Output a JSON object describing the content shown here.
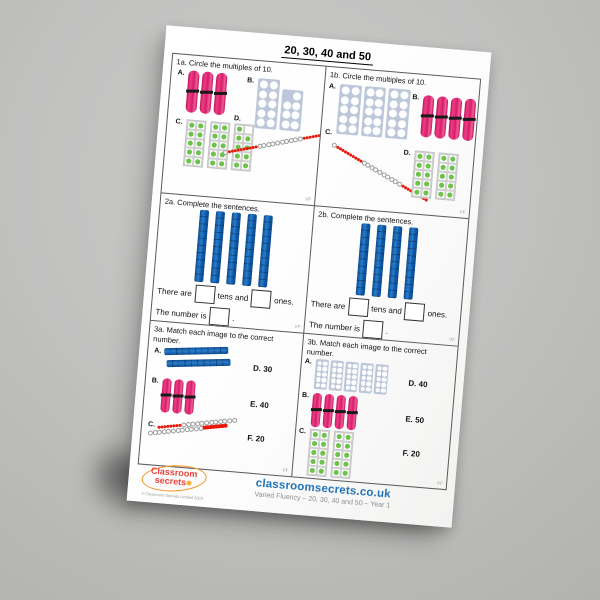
{
  "page": {
    "title": "20, 30, 40 and 50",
    "watermark": "VF",
    "footer": {
      "logo_line1": "Classroom",
      "logo_line2": "secrets",
      "logo_star": "✱",
      "copyright": "© Classroom Secrets Limited 2023",
      "website": "classroomsecrets.co.uk",
      "subtitle": "Varied Fluency – 20, 30, 40 and 50 – Year 1"
    }
  },
  "colors": {
    "bundle_pink": "#e0246d",
    "rod_blue": "#1266ae",
    "numicon_grey": "#bcc8da",
    "dot_green": "#6cc24a",
    "bead_red": "#e8190b",
    "website_blue": "#2273b8",
    "logo_orange": "#f7941d",
    "logo_red": "#e8423c"
  },
  "sections": {
    "s1a": {
      "label": "1a. Circle the multiples of 10.",
      "items": [
        {
          "letter": "A.",
          "type": "bundles",
          "count": 3,
          "value": 30
        },
        {
          "letter": "B.",
          "type": "numicon_pair",
          "shapes": [
            10,
            7
          ],
          "value": 17
        },
        {
          "letter": "C.",
          "type": "tenframes",
          "frames": [
            10,
            10,
            9
          ],
          "value": 29
        },
        {
          "letter": "D.",
          "type": "beads",
          "pattern": "w1,r10,w10,r10",
          "angle": -15,
          "value": 30
        }
      ]
    },
    "s1b": {
      "label": "1b. Circle the multiples of 10.",
      "items": [
        {
          "letter": "A.",
          "type": "numicons",
          "count": 3,
          "value": 30
        },
        {
          "letter": "B.",
          "type": "bundles",
          "count": 4,
          "value": 40
        },
        {
          "letter": "C.",
          "type": "beads",
          "pattern": "w1,r10,w10,r10",
          "angle": 26,
          "value": 30
        },
        {
          "letter": "D.",
          "type": "tenframes",
          "frames": [
            10,
            10
          ],
          "value": 20
        }
      ]
    },
    "s2a": {
      "label": "2a. Complete the sentences.",
      "rods": {
        "type": "rods",
        "count": 5,
        "value": 50
      },
      "sentence": {
        "p1": "There are",
        "p2": "tens and",
        "p3": "ones.",
        "p4": "The number is",
        "p5": "."
      }
    },
    "s2b": {
      "label": "2b. Complete the sentences.",
      "rods": {
        "type": "rods",
        "count": 4,
        "value": 40
      },
      "sentence": {
        "p1": "There are",
        "p2": "tens and",
        "p3": "ones.",
        "p4": "The number is",
        "p5": "."
      }
    },
    "s3a": {
      "label": "3a. Match each image to the correct number.",
      "items": [
        {
          "letter": "A.",
          "type": "hrods",
          "count": 2,
          "value": 20
        },
        {
          "letter": "B.",
          "type": "bundles_sm",
          "count": 3,
          "value": 30
        },
        {
          "letter": "C.",
          "type": "beadpair",
          "top": "r8,w12",
          "bottom": "w12,r8",
          "angle": -10,
          "value": 40
        }
      ],
      "options": [
        "D. 30",
        "E. 40",
        "F. 20"
      ]
    },
    "s3b": {
      "label": "3b. Match each image to the correct number.",
      "items": [
        {
          "letter": "A.",
          "type": "numicons_sm",
          "count": 5,
          "value": 50
        },
        {
          "letter": "B.",
          "type": "bundles_sm",
          "count": 4,
          "value": 40
        },
        {
          "letter": "C.",
          "type": "tenframes",
          "frames": [
            10,
            10
          ],
          "value": 20
        }
      ],
      "options": [
        "D. 40",
        "E. 50",
        "F. 20"
      ]
    }
  }
}
